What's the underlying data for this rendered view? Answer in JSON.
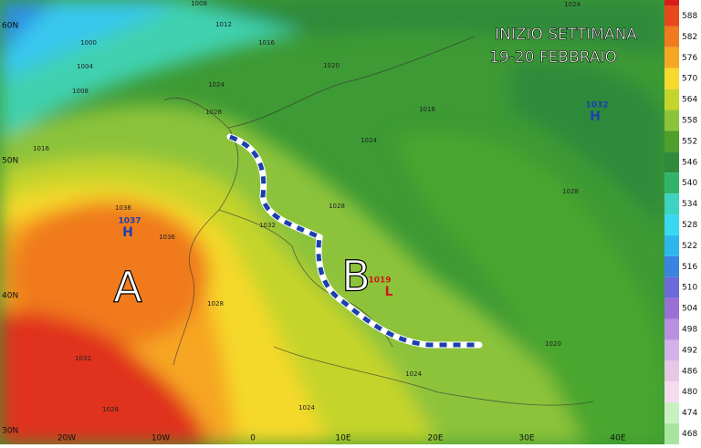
{
  "title": {
    "line1": "INIZIO SETTIMANA",
    "line2": "19-20 FEBBRAIO"
  },
  "centers": [
    "A",
    "B"
  ],
  "pressure_centers": [
    {
      "value": 1037,
      "symbol": "H"
    },
    {
      "value": 1032,
      "symbol": "H"
    },
    {
      "value": 1019,
      "symbol": "L"
    }
  ],
  "isobar_labels": [
    1008,
    1012,
    1016,
    1020,
    1000,
    1004,
    1008,
    1016,
    1024,
    1028,
    1016,
    1036,
    1036,
    1032,
    1028,
    1028,
    1032,
    1028,
    1024,
    1024,
    1020,
    1024,
    1028,
    1024
  ],
  "latitude_labels": [
    "60N",
    "50N",
    "40N",
    "30N"
  ],
  "longitude_labels": [
    "20W",
    "10W",
    "0",
    "10E",
    "20E",
    "30E",
    "40E"
  ],
  "colorbar": [
    {
      "label": "588",
      "color": "#e8481c"
    },
    {
      "label": "582",
      "color": "#f07a1e"
    },
    {
      "label": "576",
      "color": "#f6a623"
    },
    {
      "label": "570",
      "color": "#f5d92c"
    },
    {
      "label": "564",
      "color": "#c5d42a"
    },
    {
      "label": "558",
      "color": "#8cc33a"
    },
    {
      "label": "552",
      "color": "#4e9e2c"
    },
    {
      "label": "546",
      "color": "#2f8a3a"
    },
    {
      "label": "540",
      "color": "#33b36a"
    },
    {
      "label": "534",
      "color": "#3dd3c0"
    },
    {
      "label": "528",
      "color": "#38d8f0"
    },
    {
      "label": "522",
      "color": "#2db7ee"
    },
    {
      "label": "516",
      "color": "#3a83e0"
    },
    {
      "label": "510",
      "color": "#6a6ad8"
    },
    {
      "label": "504",
      "color": "#9a6fd6"
    },
    {
      "label": "498",
      "color": "#b98fe0"
    },
    {
      "label": "492",
      "color": "#d3b2ea"
    },
    {
      "label": "486",
      "color": "#e8c6e6"
    },
    {
      "label": "480",
      "color": "#f4dcee"
    },
    {
      "label": "474",
      "color": "#c8f0c0"
    },
    {
      "label": "468",
      "color": "#a8e6a0"
    }
  ]
}
